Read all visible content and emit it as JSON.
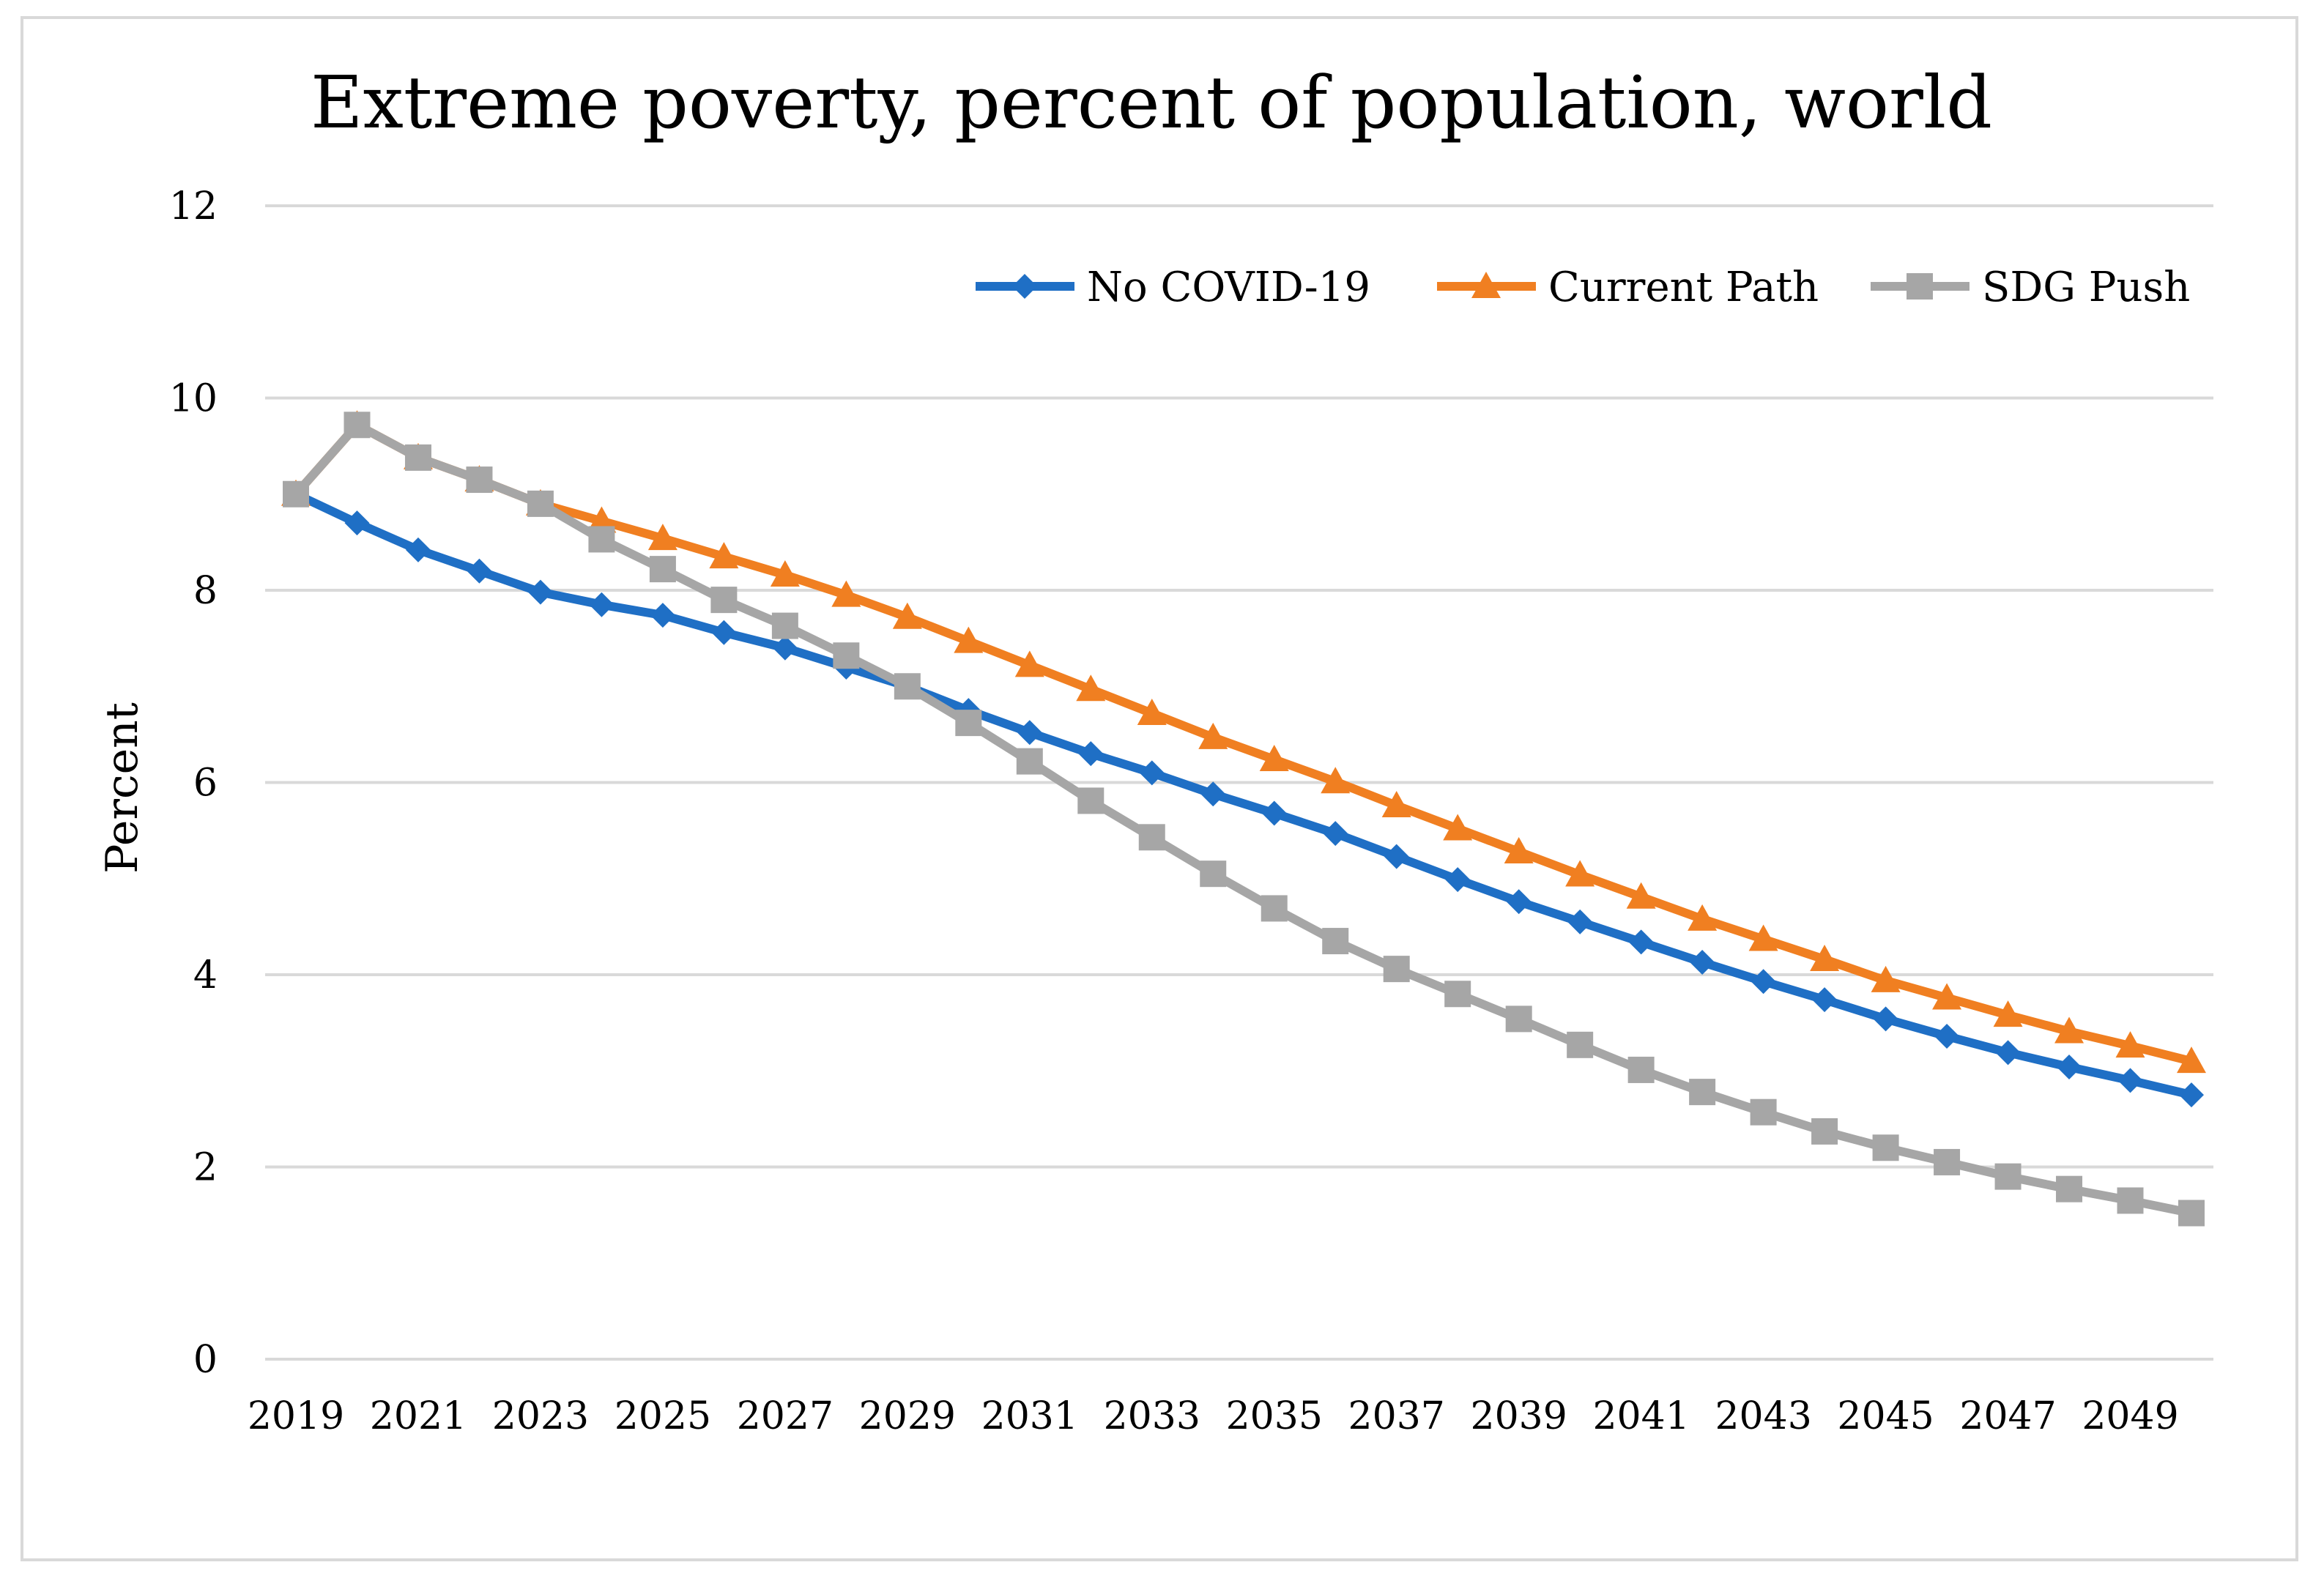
{
  "chart_data": {
    "type": "line",
    "title": "Extreme poverty, percent of population, world",
    "xlabel": "",
    "ylabel": "Percent",
    "ylim": [
      0,
      12
    ],
    "yticks": [
      0,
      2,
      4,
      6,
      8,
      10,
      12
    ],
    "x": [
      2019,
      2020,
      2021,
      2022,
      2023,
      2024,
      2025,
      2026,
      2027,
      2028,
      2029,
      2030,
      2031,
      2032,
      2033,
      2034,
      2035,
      2036,
      2037,
      2038,
      2039,
      2040,
      2041,
      2042,
      2043,
      2044,
      2045,
      2046,
      2047,
      2048,
      2049,
      2050
    ],
    "xtick_labels": [
      "2019",
      "2021",
      "2023",
      "2025",
      "2027",
      "2029",
      "2031",
      "2033",
      "2035",
      "2037",
      "2039",
      "2041",
      "2043",
      "2045",
      "2047",
      "2049"
    ],
    "grid": true,
    "legend_position": "top-right",
    "series": [
      {
        "name": "No COVID-19",
        "color": "#1f6fc5",
        "marker": "diamond",
        "values": [
          9.0,
          8.7,
          8.42,
          8.2,
          7.98,
          7.85,
          7.74,
          7.56,
          7.4,
          7.2,
          7.0,
          6.75,
          6.52,
          6.3,
          6.1,
          5.88,
          5.68,
          5.47,
          5.23,
          4.99,
          4.76,
          4.55,
          4.34,
          4.13,
          3.93,
          3.74,
          3.54,
          3.36,
          3.19,
          3.04,
          2.9,
          2.75
        ]
      },
      {
        "name": "Current Path",
        "color": "#f07f21",
        "marker": "triangle",
        "values": [
          9.0,
          9.72,
          9.38,
          9.15,
          8.9,
          8.72,
          8.54,
          8.35,
          8.16,
          7.95,
          7.72,
          7.47,
          7.22,
          6.97,
          6.72,
          6.47,
          6.24,
          6.01,
          5.76,
          5.52,
          5.28,
          5.04,
          4.81,
          4.58,
          4.37,
          4.16,
          3.94,
          3.76,
          3.58,
          3.41,
          3.26,
          3.1
        ]
      },
      {
        "name": "SDG Push",
        "color": "#a6a6a6",
        "marker": "square",
        "values": [
          9.0,
          9.72,
          9.38,
          9.15,
          8.9,
          8.53,
          8.22,
          7.9,
          7.63,
          7.32,
          7.0,
          6.62,
          6.22,
          5.81,
          5.43,
          5.05,
          4.69,
          4.35,
          4.06,
          3.8,
          3.54,
          3.27,
          3.01,
          2.78,
          2.57,
          2.37,
          2.2,
          2.05,
          1.9,
          1.77,
          1.65,
          1.52
        ]
      }
    ]
  }
}
